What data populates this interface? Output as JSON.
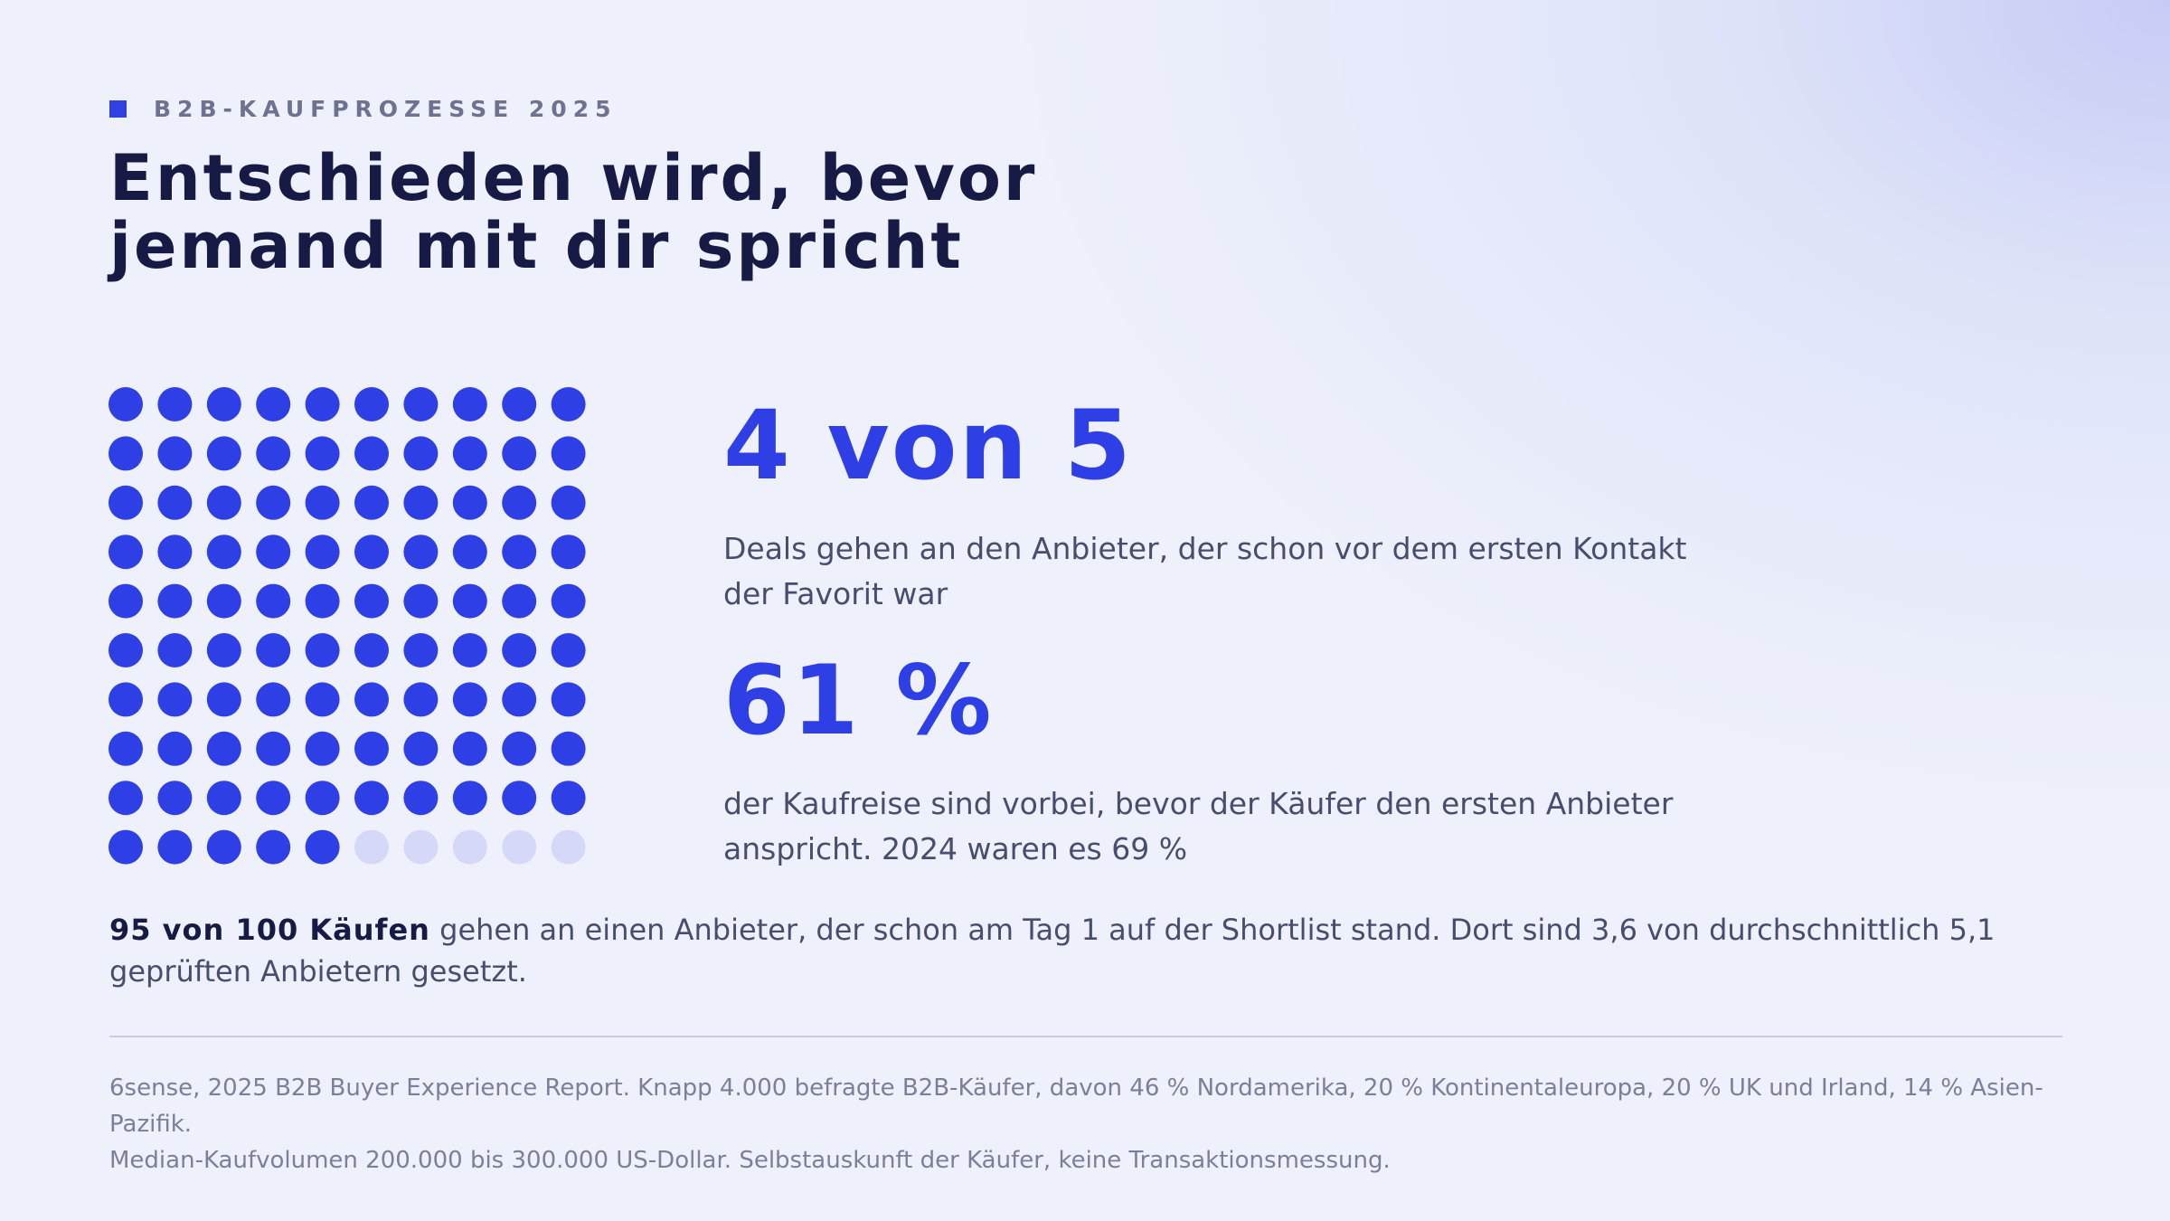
{
  "eyebrow": "B2B-KAUFPROZESSE 2025",
  "title": {
    "line1": "Entschieden wird, bevor",
    "line2": "jemand mit dir spricht"
  },
  "dot_grid": {
    "filled": 95,
    "total": 100,
    "filled_color": "#2f3fe6",
    "empty_color": "#d5d8f6"
  },
  "stats": [
    {
      "value": "4 von 5",
      "description": "Deals gehen an den Anbieter, der schon vor dem ersten Kontakt der Favorit war"
    },
    {
      "value": "61 %",
      "description": "der Kaufreise sind vorbei, bevor der Käufer den ersten Anbieter anspricht. 2024 waren es 69 %"
    }
  ],
  "summary": {
    "highlight": "95 von 100 Käufen",
    "text": " gehen an einen Anbieter, der schon am Tag 1 auf der Shortlist stand. Dort sind 3,6 von durchschnittlich 5,1 geprüften Anbietern gesetzt."
  },
  "source": {
    "line1": "6sense, 2025 B2B Buyer Experience Report. Knapp 4.000 befragte B2B-Käufer, davon 46 % Nordamerika, 20 % Kontinentaleuropa, 20 % UK und Irland, 14 % Asien-Pazifik.",
    "line2": "Median-Kaufvolumen 200.000 bis 300.000 US-Dollar. Selbstauskunft der Käufer, keine Transaktionsmessung."
  },
  "colors": {
    "accent": "#2f3fe6",
    "heading": "#171a44",
    "body_text": "#494d6d",
    "muted_text": "#7b7f99",
    "background": "#eef1fb"
  }
}
